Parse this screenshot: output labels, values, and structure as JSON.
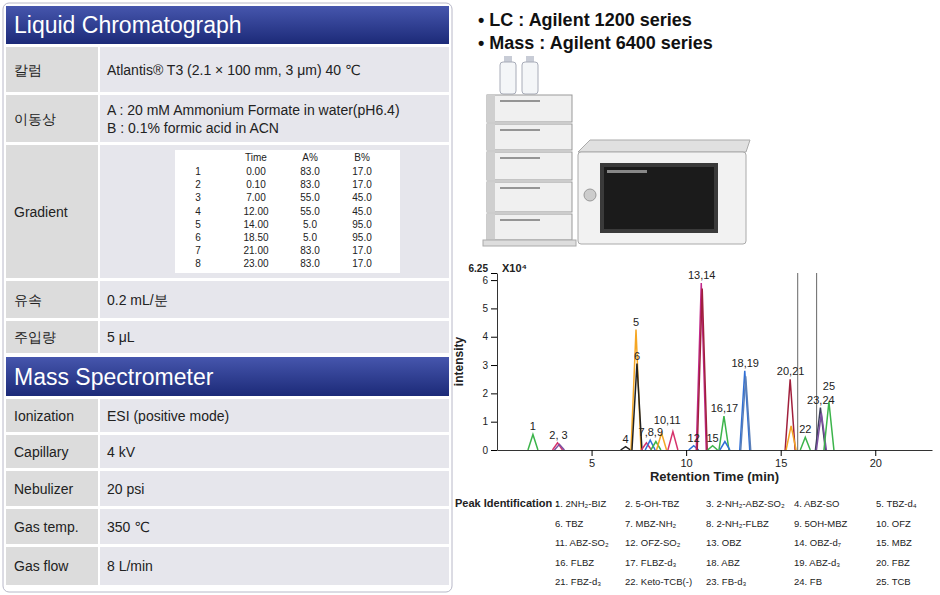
{
  "lc": {
    "title": "Liquid Chromatograph",
    "rows": [
      {
        "label": "칼럼",
        "lines": [
          "Atlantis® T3 (2.1 × 100 mm, 3 μm) 40 ℃"
        ]
      },
      {
        "label": "이동상",
        "lines": [
          "A : 20 mM Ammonium Formate in water(pH6.4)",
          "B : 0.1% formic acid in ACN"
        ]
      },
      {
        "label": "Gradient",
        "gradient": {
          "columns": [
            "Time",
            "A%",
            "B%"
          ],
          "rows": [
            [
              "1",
              "0.00",
              "83.0",
              "17.0"
            ],
            [
              "2",
              "0.10",
              "83.0",
              "17.0"
            ],
            [
              "3",
              "7.00",
              "55.0",
              "45.0"
            ],
            [
              "4",
              "12.00",
              "55.0",
              "45.0"
            ],
            [
              "5",
              "14.00",
              "5.0",
              "95.0"
            ],
            [
              "6",
              "18.50",
              "5.0",
              "95.0"
            ],
            [
              "7",
              "21.00",
              "83.0",
              "17.0"
            ],
            [
              "8",
              "23.00",
              "83.0",
              "17.0"
            ]
          ]
        }
      },
      {
        "label": "유속",
        "lines": [
          "0.2 mL/분"
        ]
      },
      {
        "label": "주입량",
        "lines": [
          "5 μL"
        ]
      }
    ]
  },
  "ms": {
    "title": "Mass Spectrometer",
    "rows": [
      {
        "label": "Ionization",
        "lines": [
          "ESI (positive mode)"
        ]
      },
      {
        "label": "Capillary",
        "lines": [
          "4 kV"
        ]
      },
      {
        "label": "Nebulizer",
        "lines": [
          "20 psi"
        ]
      },
      {
        "label": "Gas temp.",
        "lines": [
          "350 ℃"
        ]
      },
      {
        "label": "Gas flow",
        "lines": [
          "8 L/min"
        ]
      }
    ]
  },
  "instruments": [
    "• LC : Agilent 1200 series",
    "• Mass : Agilent 6400 series"
  ],
  "chart_data": {
    "type": "line",
    "x_label": "Retention Time (min)",
    "y_label": "intensity",
    "y_unit_label": "X10⁴",
    "xlim": [
      0,
      23
    ],
    "xticks": [
      5,
      10,
      15,
      20
    ],
    "ylim": [
      0,
      6.25
    ],
    "yticks": [
      0,
      1,
      2,
      3,
      4,
      5,
      6,
      6.25
    ],
    "grid": false,
    "vlines": [
      15.9,
      16.9
    ],
    "series": [
      {
        "label": "1",
        "x": [
          1.9
        ],
        "values": [
          0.55
        ],
        "colors": [
          "#3cb44b"
        ]
      },
      {
        "label": "2, 3",
        "x": [
          3.2,
          3.3
        ],
        "values": [
          0.25,
          0.2
        ],
        "colors": [
          "#d6336c",
          "#7b4fa0"
        ]
      },
      {
        "label": "4",
        "x": [
          6.8
        ],
        "values": [
          0.12
        ],
        "colors": [
          "#222222"
        ]
      },
      {
        "label": "5",
        "x": [
          7.35
        ],
        "values": [
          4.25
        ],
        "colors": [
          "#f5a623"
        ]
      },
      {
        "label": "6",
        "x": [
          7.4
        ],
        "values": [
          3.05
        ],
        "colors": [
          "#222222"
        ]
      },
      {
        "label": "7,8,9",
        "x": [
          7.9,
          8.1,
          8.4
        ],
        "values": [
          0.25,
          0.35,
          0.3
        ],
        "colors": [
          "#d6336c",
          "#2f6fd6",
          "#3cb44b"
        ]
      },
      {
        "label": "10,11",
        "x": [
          8.7,
          9.3
        ],
        "values": [
          0.6,
          0.65
        ],
        "colors": [
          "#f5a623",
          "#d6336c"
        ]
      },
      {
        "label": "12",
        "x": [
          10.4
        ],
        "values": [
          0.15
        ],
        "colors": [
          "#2f6fd6"
        ]
      },
      {
        "label": "13,14",
        "x": [
          10.8,
          10.85
        ],
        "values": [
          5.9,
          5.7
        ],
        "colors": [
          "#c2288a",
          "#a0203c"
        ]
      },
      {
        "label": "15",
        "x": [
          11.4
        ],
        "values": [
          0.15
        ],
        "colors": [
          "#3cb44b"
        ]
      },
      {
        "label": "16,17",
        "x": [
          12.0,
          12.05
        ],
        "values": [
          1.2,
          0.3
        ],
        "colors": [
          "#3cb44b",
          "#2f6fd6"
        ]
      },
      {
        "label": "18,19",
        "x": [
          13.1,
          13.15
        ],
        "values": [
          2.8,
          2.6
        ],
        "colors": [
          "#2f6fd6",
          "#5a7fb8"
        ]
      },
      {
        "label": "20,21",
        "x": [
          15.5,
          15.55
        ],
        "values": [
          2.5,
          0.85
        ],
        "colors": [
          "#a0203c",
          "#f5a623"
        ]
      },
      {
        "label": "22",
        "x": [
          16.3
        ],
        "values": [
          0.45
        ],
        "colors": [
          "#3cb44b"
        ]
      },
      {
        "label": "23,24",
        "x": [
          17.1,
          17.15
        ],
        "values": [
          1.5,
          1.3
        ],
        "colors": [
          "#3b3f5c",
          "#7b4fa0"
        ]
      },
      {
        "label": "25",
        "x": [
          17.55
        ],
        "values": [
          1.7
        ],
        "colors": [
          "#3cb44b"
        ]
      }
    ]
  },
  "peak_identification": {
    "title": "Peak Identification :",
    "items": [
      "1. 2NH₂-BIZ",
      "2. 5-OH-TBZ",
      "3. 2-NH₂-ABZ-SO₂",
      "4. ABZ-SO",
      "5. TBZ-d₄",
      "6. TBZ",
      "7. MBZ-NH₂",
      "8. 2-NH₂-FLBZ",
      "9. 5OH-MBZ",
      "10. OFZ",
      "11. ABZ-SO₂",
      "12. OFZ-SO₂",
      "13. OBZ",
      "14. OBZ-d₇",
      "15. MBZ",
      "16. FLBZ",
      "17. FLBZ-d₃",
      "18. ABZ",
      "19. ABZ-d₃",
      "20. FBZ",
      "21. FBZ-d₃",
      "22. Keto-TCB(-)",
      "23. FB-d₃",
      "24. FB",
      "25. TCB"
    ]
  }
}
